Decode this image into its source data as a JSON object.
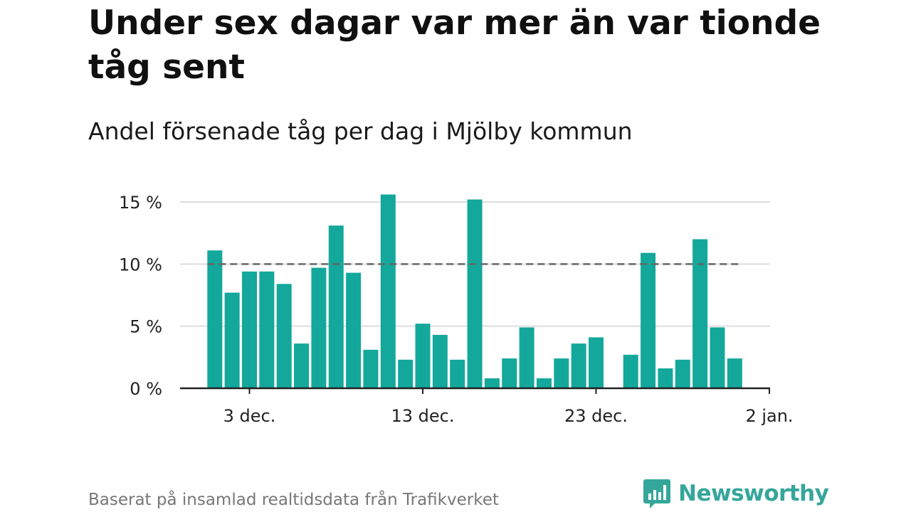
{
  "header": {
    "title": "Under sex dagar var mer än var tionde tåg sent",
    "subtitle": "Andel försenade tåg per dag i Mjölby kommun"
  },
  "footer": {
    "source": "Baserat på insamlad realtidsdata från Trafikverket",
    "brand": "Newsworthy",
    "brand_icon": "bar-chart-speech-bubble-icon"
  },
  "colors": {
    "bar": "#13a89b",
    "gridline": "#dddddd",
    "reference_line": "#666666",
    "axis": "#222222",
    "brand": "#35a69a"
  },
  "chart_data": {
    "type": "bar",
    "title": "Andel försenade tåg per dag i Mjölby kommun",
    "xlabel": "",
    "ylabel": "",
    "x_axis": "date",
    "categories": [
      "2024-12-01",
      "2024-12-02",
      "2024-12-03",
      "2024-12-04",
      "2024-12-05",
      "2024-12-06",
      "2024-12-07",
      "2024-12-08",
      "2024-12-09",
      "2024-12-10",
      "2024-12-11",
      "2024-12-12",
      "2024-12-13",
      "2024-12-14",
      "2024-12-15",
      "2024-12-16",
      "2024-12-17",
      "2024-12-18",
      "2024-12-19",
      "2024-12-20",
      "2024-12-21",
      "2024-12-22",
      "2024-12-23",
      "2024-12-24",
      "2024-12-25",
      "2024-12-26",
      "2024-12-27",
      "2024-12-28",
      "2024-12-29",
      "2024-12-30",
      "2024-12-31"
    ],
    "values": [
      11.1,
      7.7,
      9.4,
      9.4,
      8.4,
      3.6,
      9.7,
      13.1,
      9.3,
      3.1,
      15.6,
      2.3,
      5.2,
      4.3,
      2.3,
      15.2,
      0.8,
      2.4,
      4.9,
      0.8,
      2.4,
      3.6,
      4.1,
      null,
      2.7,
      10.9,
      1.6,
      2.3,
      12.0,
      4.9,
      2.4
    ],
    "reference_line": 10,
    "ylim": [
      0,
      16
    ],
    "yticks": [
      0,
      5,
      10,
      15
    ],
    "ytick_labels": [
      "0 %",
      "5 %",
      "10 %",
      "15 %"
    ],
    "xticks": [
      "2024-12-03",
      "2024-12-13",
      "2024-12-23",
      "2025-01-02"
    ],
    "xtick_labels": [
      "3 dec.",
      "13 dec.",
      "23 dec.",
      "2 jan."
    ],
    "grid": true,
    "legend": "none"
  }
}
